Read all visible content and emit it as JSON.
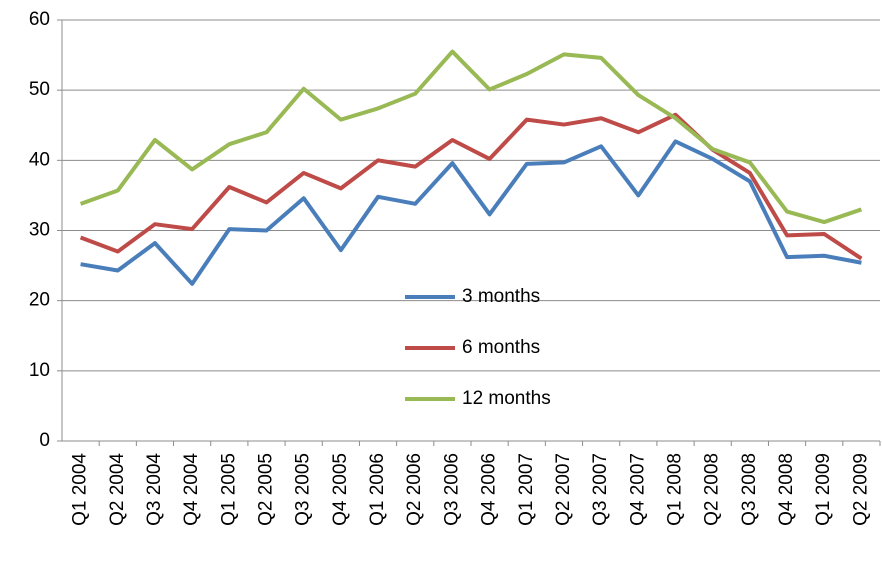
{
  "chart_data": {
    "type": "line",
    "categories": [
      "Q1 2004",
      "Q2 2004",
      "Q3 2004",
      "Q4 2004",
      "Q1 2005",
      "Q2 2005",
      "Q3 2005",
      "Q4 2005",
      "Q1 2006",
      "Q2 2006",
      "Q3 2006",
      "Q4 2006",
      "Q1 2007",
      "Q2 2007",
      "Q3 2007",
      "Q4 2007",
      "Q1 2008",
      "Q2 2008",
      "Q3 2008",
      "Q4 2008",
      "Q1 2009",
      "Q2 2009"
    ],
    "series": [
      {
        "name": "3 months",
        "color": "#4a7ebb",
        "values": [
          25.2,
          24.3,
          28.2,
          22.4,
          30.2,
          30.0,
          34.6,
          27.2,
          34.8,
          33.8,
          39.6,
          32.3,
          39.5,
          39.7,
          42.0,
          35.0,
          42.7,
          40.2,
          37.0,
          26.2,
          26.4,
          25.4
        ]
      },
      {
        "name": "6 months",
        "color": "#be4b48",
        "values": [
          29.0,
          27.0,
          30.9,
          30.2,
          36.2,
          34.0,
          38.2,
          36.0,
          40.0,
          39.1,
          42.9,
          40.2,
          45.8,
          45.1,
          46.0,
          44.0,
          46.5,
          41.5,
          38.2,
          29.3,
          29.5,
          26.0
        ]
      },
      {
        "name": "12 months",
        "color": "#98b954",
        "values": [
          33.8,
          35.7,
          42.9,
          38.7,
          42.3,
          44.0,
          50.2,
          45.8,
          47.4,
          49.5,
          55.5,
          50.1,
          52.3,
          55.1,
          54.6,
          49.3,
          46.0,
          41.6,
          39.7,
          32.7,
          31.2,
          33.0
        ]
      }
    ],
    "ylim": [
      0,
      60
    ],
    "yticks": [
      0,
      10,
      20,
      30,
      40,
      50,
      60
    ],
    "grid": true
  }
}
